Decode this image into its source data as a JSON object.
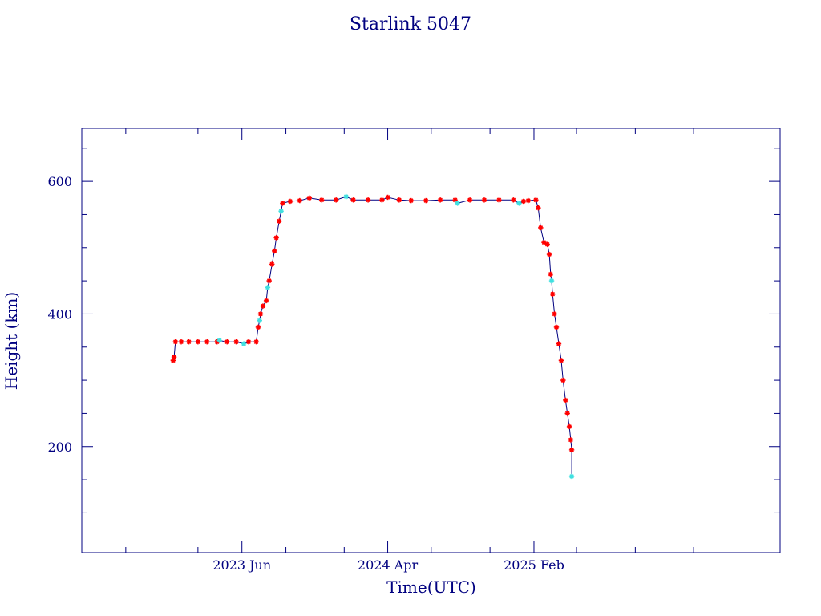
{
  "chart_data": {
    "type": "scatter",
    "title": "Starlink 5047",
    "xlabel": "Time(UTC)",
    "ylabel": "Height (km)",
    "x_axis": {
      "kind": "date",
      "range": [
        "2022-07-01",
        "2026-07-01"
      ],
      "major_ticks": [
        {
          "date": "2023-06-01",
          "label": "2023 Jun"
        },
        {
          "date": "2024-04-01",
          "label": "2024 Apr"
        },
        {
          "date": "2025-02-01",
          "label": "2025 Feb"
        }
      ],
      "minor_ticks": [
        "2022-10-01",
        "2023-03-01",
        "2023-09-01",
        "2024-01-01",
        "2024-07-01",
        "2024-11-01",
        "2025-05-01",
        "2025-09-01",
        "2026-01-01"
      ]
    },
    "y_axis": {
      "range": [
        40,
        680
      ],
      "major_ticks": [
        200,
        400,
        600
      ],
      "minor_ticks": [
        100,
        150,
        250,
        300,
        350,
        450,
        500,
        550,
        650
      ]
    },
    "grid": false,
    "legend": "none",
    "colors": {
      "axis": "#000080",
      "marker_primary": "#ff0000",
      "marker_secondary": "#40e0e0",
      "trace": "#000080"
    },
    "series": [
      {
        "marker": "star",
        "color": "#ff0000",
        "points": [
          [
            "2023-01-08",
            330
          ],
          [
            "2023-01-10",
            335
          ],
          [
            "2023-01-13",
            358
          ],
          [
            "2023-01-25",
            358
          ],
          [
            "2023-02-10",
            358
          ],
          [
            "2023-03-01",
            358
          ],
          [
            "2023-03-20",
            358
          ],
          [
            "2023-04-10",
            358
          ],
          [
            "2023-05-01",
            358
          ],
          [
            "2023-05-20",
            358
          ],
          [
            "2023-06-15",
            358
          ],
          [
            "2023-07-01",
            358
          ],
          [
            "2023-07-05",
            380
          ],
          [
            "2023-07-10",
            400
          ],
          [
            "2023-07-15",
            412
          ],
          [
            "2023-07-22",
            420
          ],
          [
            "2023-07-28",
            450
          ],
          [
            "2023-08-03",
            475
          ],
          [
            "2023-08-08",
            495
          ],
          [
            "2023-08-12",
            515
          ],
          [
            "2023-08-18",
            540
          ],
          [
            "2023-08-25",
            567
          ],
          [
            "2023-09-10",
            570
          ],
          [
            "2023-09-30",
            571
          ],
          [
            "2023-10-20",
            575
          ],
          [
            "2023-11-15",
            572
          ],
          [
            "2023-12-15",
            572
          ],
          [
            "2024-01-20",
            572
          ],
          [
            "2024-02-20",
            572
          ],
          [
            "2024-03-20",
            572
          ],
          [
            "2024-04-01",
            576
          ],
          [
            "2024-04-25",
            572
          ],
          [
            "2024-05-20",
            571
          ],
          [
            "2024-06-20",
            571
          ],
          [
            "2024-07-20",
            572
          ],
          [
            "2024-08-20",
            572
          ],
          [
            "2024-09-20",
            572
          ],
          [
            "2024-10-20",
            572
          ],
          [
            "2024-11-20",
            572
          ],
          [
            "2024-12-20",
            572
          ],
          [
            "2025-01-10",
            570
          ],
          [
            "2025-01-20",
            571
          ],
          [
            "2025-02-05",
            572
          ],
          [
            "2025-02-10",
            560
          ],
          [
            "2025-02-15",
            530
          ],
          [
            "2025-02-22",
            508
          ],
          [
            "2025-03-01",
            505
          ],
          [
            "2025-03-05",
            490
          ],
          [
            "2025-03-08",
            460
          ],
          [
            "2025-03-12",
            430
          ],
          [
            "2025-03-16",
            400
          ],
          [
            "2025-03-20",
            380
          ],
          [
            "2025-03-25",
            355
          ],
          [
            "2025-03-30",
            330
          ],
          [
            "2025-04-03",
            300
          ],
          [
            "2025-04-08",
            270
          ],
          [
            "2025-04-12",
            250
          ],
          [
            "2025-04-16",
            230
          ],
          [
            "2025-04-19",
            210
          ],
          [
            "2025-04-21",
            195
          ]
        ]
      },
      {
        "marker": "star",
        "color": "#40e0e0",
        "points": [
          [
            "2023-04-15",
            360
          ],
          [
            "2023-06-05",
            355
          ],
          [
            "2023-07-08",
            390
          ],
          [
            "2023-07-25",
            440
          ],
          [
            "2023-08-22",
            555
          ],
          [
            "2024-01-05",
            577
          ],
          [
            "2024-08-25",
            567
          ],
          [
            "2025-01-01",
            567
          ],
          [
            "2025-03-10",
            450
          ],
          [
            "2025-04-21",
            155
          ]
        ]
      }
    ]
  }
}
